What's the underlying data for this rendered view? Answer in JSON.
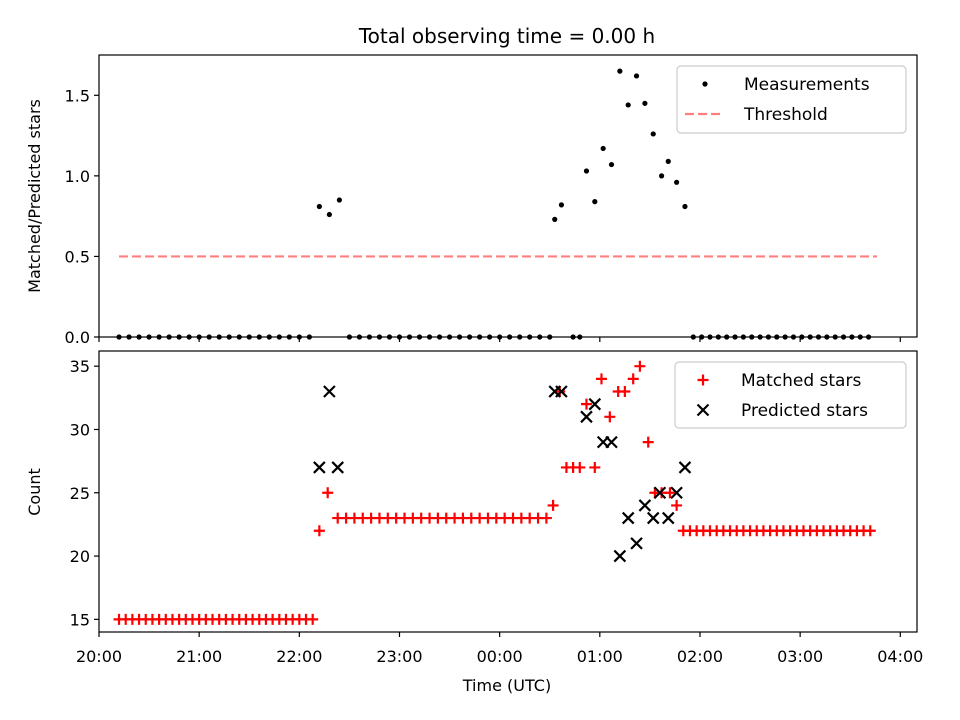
{
  "chart_data": {
    "title": "Total observing time = 0.00 h",
    "xlabel": "Time (UTC)",
    "x_tick_labels": [
      "20:00",
      "21:00",
      "22:00",
      "23:00",
      "00:00",
      "01:00",
      "02:00",
      "03:00",
      "04:00"
    ],
    "x_range": [
      "20:00",
      "04:10"
    ],
    "panels": [
      {
        "type": "scatter",
        "ylabel": "Matched/Predicted stars",
        "ylim": [
          0,
          1.75
        ],
        "y_ticks": [
          "0.0",
          "0.5",
          "1.0",
          "1.5"
        ],
        "legend_position": "top-right",
        "series": [
          {
            "name": "Measurements",
            "marker": "dot",
            "color": "#000000",
            "points": [
              [
                "20:12",
                0
              ],
              [
                "20:18",
                0
              ],
              [
                "20:24",
                0
              ],
              [
                "20:30",
                0
              ],
              [
                "20:36",
                0
              ],
              [
                "20:42",
                0
              ],
              [
                "20:48",
                0
              ],
              [
                "20:54",
                0
              ],
              [
                "21:00",
                0
              ],
              [
                "21:06",
                0
              ],
              [
                "21:12",
                0
              ],
              [
                "21:18",
                0
              ],
              [
                "21:24",
                0
              ],
              [
                "21:30",
                0
              ],
              [
                "21:36",
                0
              ],
              [
                "21:42",
                0
              ],
              [
                "21:48",
                0
              ],
              [
                "21:54",
                0
              ],
              [
                "22:00",
                0
              ],
              [
                "22:06",
                0
              ],
              [
                "22:12",
                0.81
              ],
              [
                "22:18",
                0.76
              ],
              [
                "22:24",
                0.85
              ],
              [
                "22:30",
                0
              ],
              [
                "22:36",
                0
              ],
              [
                "22:42",
                0
              ],
              [
                "22:48",
                0
              ],
              [
                "22:54",
                0
              ],
              [
                "23:00",
                0
              ],
              [
                "23:06",
                0
              ],
              [
                "23:12",
                0
              ],
              [
                "23:18",
                0
              ],
              [
                "23:24",
                0
              ],
              [
                "23:30",
                0
              ],
              [
                "23:36",
                0
              ],
              [
                "23:42",
                0
              ],
              [
                "23:48",
                0
              ],
              [
                "23:54",
                0
              ],
              [
                "00:00",
                0
              ],
              [
                "00:06",
                0
              ],
              [
                "00:12",
                0
              ],
              [
                "00:18",
                0
              ],
              [
                "00:24",
                0
              ],
              [
                "00:30",
                0
              ],
              [
                "00:33",
                0.73
              ],
              [
                "00:37",
                0.82
              ],
              [
                "00:44",
                0
              ],
              [
                "00:48",
                0
              ],
              [
                "00:52",
                1.03
              ],
              [
                "00:57",
                0.84
              ],
              [
                "01:02",
                1.17
              ],
              [
                "01:07",
                1.07
              ],
              [
                "01:12",
                1.65
              ],
              [
                "01:17",
                1.44
              ],
              [
                "01:22",
                1.62
              ],
              [
                "01:27",
                1.45
              ],
              [
                "01:32",
                1.26
              ],
              [
                "01:37",
                1.0
              ],
              [
                "01:41",
                1.09
              ],
              [
                "01:46",
                0.96
              ],
              [
                "01:51",
                0.81
              ],
              [
                "01:56",
                0
              ],
              [
                "02:01",
                0
              ],
              [
                "02:06",
                0
              ],
              [
                "02:11",
                0
              ],
              [
                "02:16",
                0
              ],
              [
                "02:21",
                0
              ],
              [
                "02:26",
                0
              ],
              [
                "02:31",
                0
              ],
              [
                "02:36",
                0
              ],
              [
                "02:41",
                0
              ],
              [
                "02:46",
                0
              ],
              [
                "02:51",
                0
              ],
              [
                "02:56",
                0
              ],
              [
                "03:01",
                0
              ],
              [
                "03:06",
                0
              ],
              [
                "03:11",
                0
              ],
              [
                "03:16",
                0
              ],
              [
                "03:21",
                0
              ],
              [
                "03:26",
                0
              ],
              [
                "03:31",
                0
              ],
              [
                "03:36",
                0
              ],
              [
                "03:41",
                0
              ]
            ]
          },
          {
            "name": "Threshold",
            "marker": "dashed-line",
            "color": "#ff7f7f",
            "points": [
              [
                "20:12",
                0.5
              ],
              [
                "03:46",
                0.5
              ]
            ]
          }
        ]
      },
      {
        "type": "scatter",
        "ylabel": "Count",
        "ylim": [
          14,
          36.2
        ],
        "y_ticks": [
          "15",
          "20",
          "25",
          "30",
          "35"
        ],
        "legend_position": "top-right",
        "series": [
          {
            "name": "Matched stars",
            "marker": "plus",
            "color": "#ff0000",
            "points": [
              [
                "20:12",
                15
              ],
              [
                "20:16",
                15
              ],
              [
                "20:20",
                15
              ],
              [
                "20:24",
                15
              ],
              [
                "20:28",
                15
              ],
              [
                "20:32",
                15
              ],
              [
                "20:36",
                15
              ],
              [
                "20:40",
                15
              ],
              [
                "20:44",
                15
              ],
              [
                "20:48",
                15
              ],
              [
                "20:52",
                15
              ],
              [
                "20:56",
                15
              ],
              [
                "21:00",
                15
              ],
              [
                "21:04",
                15
              ],
              [
                "21:08",
                15
              ],
              [
                "21:12",
                15
              ],
              [
                "21:16",
                15
              ],
              [
                "21:20",
                15
              ],
              [
                "21:24",
                15
              ],
              [
                "21:28",
                15
              ],
              [
                "21:32",
                15
              ],
              [
                "21:36",
                15
              ],
              [
                "21:40",
                15
              ],
              [
                "21:44",
                15
              ],
              [
                "21:48",
                15
              ],
              [
                "21:52",
                15
              ],
              [
                "21:56",
                15
              ],
              [
                "22:00",
                15
              ],
              [
                "22:04",
                15
              ],
              [
                "22:08",
                15
              ],
              [
                "22:12",
                22
              ],
              [
                "22:17",
                25
              ],
              [
                "22:23",
                23
              ],
              [
                "22:28",
                23
              ],
              [
                "22:33",
                23
              ],
              [
                "22:38",
                23
              ],
              [
                "22:43",
                23
              ],
              [
                "22:48",
                23
              ],
              [
                "22:53",
                23
              ],
              [
                "22:58",
                23
              ],
              [
                "23:03",
                23
              ],
              [
                "23:08",
                23
              ],
              [
                "23:13",
                23
              ],
              [
                "23:18",
                23
              ],
              [
                "23:23",
                23
              ],
              [
                "23:28",
                23
              ],
              [
                "23:33",
                23
              ],
              [
                "23:38",
                23
              ],
              [
                "23:43",
                23
              ],
              [
                "23:48",
                23
              ],
              [
                "23:53",
                23
              ],
              [
                "23:58",
                23
              ],
              [
                "00:03",
                23
              ],
              [
                "00:08",
                23
              ],
              [
                "00:13",
                23
              ],
              [
                "00:18",
                23
              ],
              [
                "00:23",
                23
              ],
              [
                "00:28",
                23
              ],
              [
                "00:32",
                24
              ],
              [
                "00:36",
                33
              ],
              [
                "00:40",
                27
              ],
              [
                "00:44",
                27
              ],
              [
                "00:48",
                27
              ],
              [
                "00:52",
                32
              ],
              [
                "00:57",
                27
              ],
              [
                "01:01",
                34
              ],
              [
                "01:06",
                31
              ],
              [
                "01:11",
                33
              ],
              [
                "01:15",
                33
              ],
              [
                "01:20",
                34
              ],
              [
                "01:24",
                35
              ],
              [
                "01:29",
                29
              ],
              [
                "01:33",
                25
              ],
              [
                "01:37",
                25
              ],
              [
                "01:42",
                25
              ],
              [
                "01:46",
                24
              ],
              [
                "01:50",
                22
              ],
              [
                "01:54",
                22
              ],
              [
                "01:58",
                22
              ],
              [
                "02:02",
                22
              ],
              [
                "02:06",
                22
              ],
              [
                "02:10",
                22
              ],
              [
                "02:14",
                22
              ],
              [
                "02:18",
                22
              ],
              [
                "02:22",
                22
              ],
              [
                "02:26",
                22
              ],
              [
                "02:30",
                22
              ],
              [
                "02:34",
                22
              ],
              [
                "02:38",
                22
              ],
              [
                "02:42",
                22
              ],
              [
                "02:46",
                22
              ],
              [
                "02:50",
                22
              ],
              [
                "02:54",
                22
              ],
              [
                "02:58",
                22
              ],
              [
                "03:02",
                22
              ],
              [
                "03:06",
                22
              ],
              [
                "03:10",
                22
              ],
              [
                "03:14",
                22
              ],
              [
                "03:18",
                22
              ],
              [
                "03:22",
                22
              ],
              [
                "03:26",
                22
              ],
              [
                "03:30",
                22
              ],
              [
                "03:34",
                22
              ],
              [
                "03:38",
                22
              ],
              [
                "03:42",
                22
              ]
            ]
          },
          {
            "name": "Predicted stars",
            "marker": "x",
            "color": "#000000",
            "points": [
              [
                "22:12",
                27
              ],
              [
                "22:18",
                33
              ],
              [
                "22:23",
                27
              ],
              [
                "00:33",
                33
              ],
              [
                "00:37",
                33
              ],
              [
                "00:52",
                31
              ],
              [
                "00:57",
                32
              ],
              [
                "01:02",
                29
              ],
              [
                "01:07",
                29
              ],
              [
                "01:12",
                20
              ],
              [
                "01:17",
                23
              ],
              [
                "01:22",
                21
              ],
              [
                "01:27",
                24
              ],
              [
                "01:32",
                23
              ],
              [
                "01:36",
                25
              ],
              [
                "01:41",
                23
              ],
              [
                "01:46",
                25
              ],
              [
                "01:51",
                27
              ]
            ]
          }
        ]
      }
    ]
  }
}
